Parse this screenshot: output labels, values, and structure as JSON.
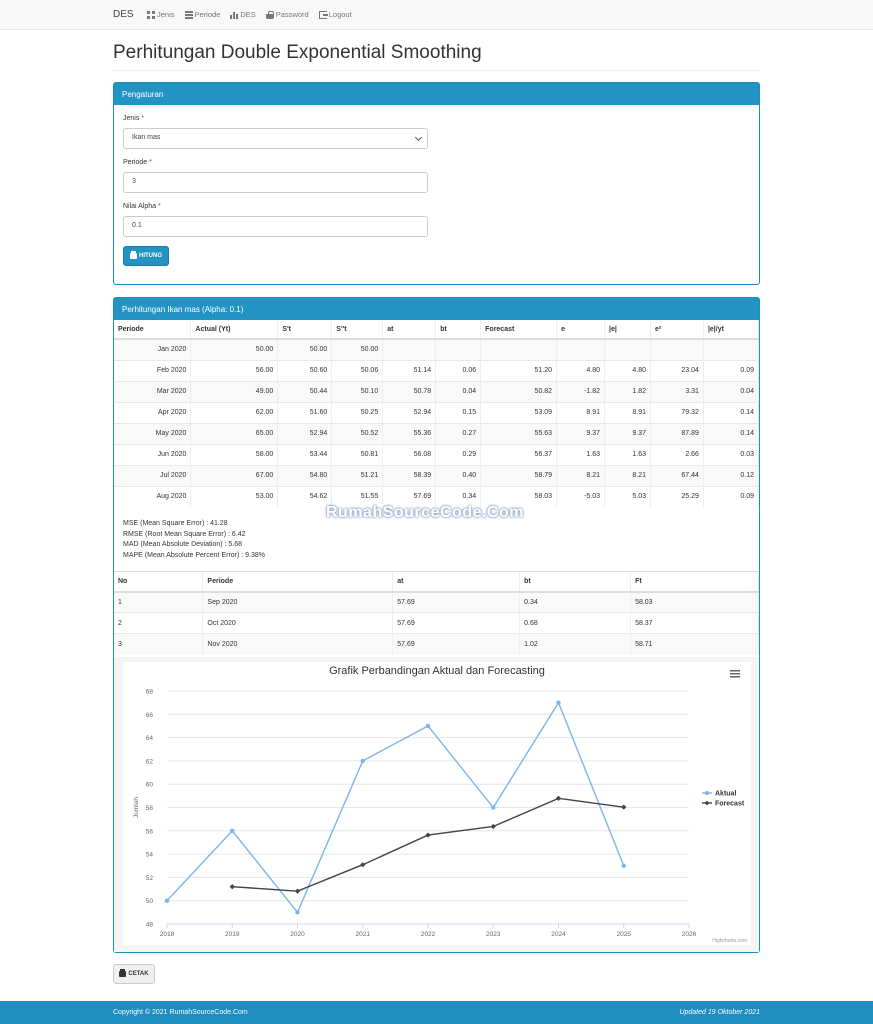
{
  "navbar": {
    "brand": "DES",
    "items": [
      {
        "label": "Jenis",
        "icon": "grid-icon"
      },
      {
        "label": "Periode",
        "icon": "list-icon"
      },
      {
        "label": "DES",
        "icon": "bar-chart-icon"
      },
      {
        "label": "Password",
        "icon": "lock-icon"
      },
      {
        "label": "Logout",
        "icon": "logout-icon"
      }
    ]
  },
  "page_title": "Perhitungan Double Exponential Smoothing",
  "settings": {
    "heading": "Pengaturan",
    "jenis_label": "Jenis",
    "jenis_value": "Ikan mas",
    "periode_label": "Periode",
    "periode_value": "3",
    "alpha_label": "Nilai Alpha",
    "alpha_value": "0.1",
    "required_mark": "*",
    "submit_label": "HITUNG"
  },
  "results": {
    "heading": "Perhitungan Ikan mas (Alpha: 0.1)",
    "columns": [
      "Periode",
      "Actual (Yt)",
      "S't",
      "S''t",
      "at",
      "bt",
      "Forecast",
      "e",
      "|e|",
      "e²",
      "|e|/yt"
    ],
    "rows": [
      [
        "Jan 2020",
        "50.00",
        "50.00",
        "50.00",
        "",
        "",
        "",
        "",
        "",
        "",
        ""
      ],
      [
        "Feb 2020",
        "56.00",
        "50.60",
        "50.06",
        "51.14",
        "0.06",
        "51.20",
        "4.80",
        "4.80",
        "23.04",
        "0.09"
      ],
      [
        "Mar 2020",
        "49.00",
        "50.44",
        "50.10",
        "50.78",
        "0.04",
        "50.82",
        "-1.82",
        "1.82",
        "3.31",
        "0.04"
      ],
      [
        "Apr 2020",
        "62.00",
        "51.60",
        "50.25",
        "52.94",
        "0.15",
        "53.09",
        "8.91",
        "8.91",
        "79.32",
        "0.14"
      ],
      [
        "May 2020",
        "65.00",
        "52.94",
        "50.52",
        "55.36",
        "0.27",
        "55.63",
        "9.37",
        "9.37",
        "87.89",
        "0.14"
      ],
      [
        "Jun 2020",
        "58.00",
        "53.44",
        "50.81",
        "56.08",
        "0.29",
        "56.37",
        "1.63",
        "1.63",
        "2.66",
        "0.03"
      ],
      [
        "Jul 2020",
        "67.00",
        "54.80",
        "51.21",
        "58.39",
        "0.40",
        "58.79",
        "8.21",
        "8.21",
        "67.44",
        "0.12"
      ],
      [
        "Aug 2020",
        "53.00",
        "54.62",
        "51.55",
        "57.69",
        "0.34",
        "58.03",
        "-5.03",
        "5.03",
        "25.29",
        "0.09"
      ]
    ],
    "metrics": [
      "MSE (Mean Square Error) : 41.28",
      "RMSE (Root Mean Square Error) : 6.42",
      "MAD (Mean Absolute Deviation) : 5.68",
      "MAPE (Mean Absolute Percent Error) : 9.38%"
    ],
    "watermark": "RumahSourceCode.Com",
    "forecast_columns": [
      "No",
      "Periode",
      "at",
      "bt",
      "Ft"
    ],
    "forecast_rows": [
      [
        "1",
        "Sep 2020",
        "57.69",
        "0.34",
        "58.03"
      ],
      [
        "2",
        "Oct 2020",
        "57.69",
        "0.68",
        "58.37"
      ],
      [
        "3",
        "Nov 2020",
        "57.69",
        "1.02",
        "58.71"
      ]
    ]
  },
  "chart_data": {
    "type": "line",
    "title": "Grafik Perbandingan Aktual dan Forecasting",
    "ylabel": "Jumlah",
    "xlabel": "",
    "x_ticks": [
      "2018",
      "2019",
      "2020",
      "2021",
      "2022",
      "2023",
      "2024",
      "2025",
      "2026"
    ],
    "ylim": [
      48,
      68
    ],
    "y_ticks": [
      48,
      50,
      52,
      54,
      56,
      58,
      60,
      62,
      64,
      66,
      68
    ],
    "grid": true,
    "legend_position": "right",
    "credit": "Highcharts.com",
    "series": [
      {
        "name": "Aktual",
        "color": "#7cb5ec",
        "marker": "circle",
        "x": [
          0,
          1,
          2,
          3,
          4,
          5,
          6,
          7
        ],
        "values": [
          50,
          56,
          49,
          62,
          65,
          58,
          67,
          53
        ]
      },
      {
        "name": "Forecast",
        "color": "#434348",
        "marker": "diamond",
        "x": [
          1,
          2,
          3,
          4,
          5,
          6,
          7
        ],
        "values": [
          51.2,
          50.82,
          53.09,
          55.63,
          56.37,
          58.79,
          58.03
        ]
      }
    ]
  },
  "print_label": "CETAK",
  "footer": {
    "copyright": "Copyright © 2021 RumahSourceCode.Com",
    "updated": "Updated 19 Oktober 2021"
  },
  "colors": {
    "primary": "#2393c4",
    "footer": "#1e8dbf",
    "required": "#c9302c"
  }
}
